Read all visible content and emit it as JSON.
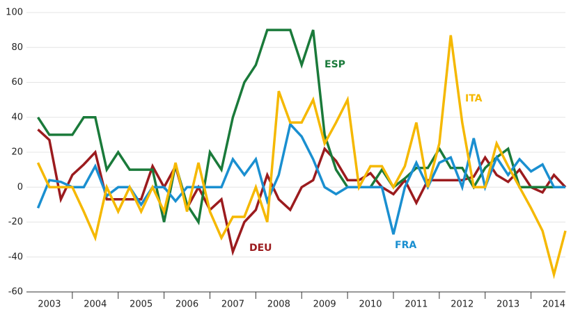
{
  "chart_data": {
    "type": "line",
    "x": [
      2003.25,
      2003.5,
      2003.75,
      2004,
      2004.25,
      2004.5,
      2004.75,
      2005,
      2005.25,
      2005.5,
      2005.75,
      2006,
      2006.25,
      2006.5,
      2006.75,
      2007,
      2007.25,
      2007.5,
      2007.75,
      2008,
      2008.25,
      2008.5,
      2008.75,
      2009,
      2009.25,
      2009.5,
      2009.75,
      2010,
      2010.25,
      2010.5,
      2010.75,
      2011,
      2011.25,
      2011.5,
      2011.75,
      2012,
      2012.25,
      2012.5,
      2012.75,
      2013,
      2013.25,
      2013.5,
      2013.75,
      2014,
      2014.25,
      2014.5,
      2014.75
    ],
    "series": [
      {
        "name": "DEU",
        "color": "#9b1b1e",
        "values": [
          33,
          27,
          -7,
          7,
          13,
          20,
          -7,
          -7,
          -7,
          -7,
          12,
          0,
          12,
          -12,
          0,
          -13,
          -7,
          -37,
          -20,
          -13,
          7,
          -7,
          -13,
          0,
          4,
          22,
          15,
          4,
          4,
          8,
          0,
          -4,
          4,
          -9,
          4,
          4,
          4,
          4,
          6,
          17,
          7,
          3,
          10,
          0,
          -3,
          7,
          0
        ]
      },
      {
        "name": "ESP",
        "color": "#1a7a3a",
        "values": [
          40,
          30,
          30,
          30,
          40,
          40,
          10,
          20,
          10,
          10,
          10,
          -20,
          13,
          -10,
          -20,
          20,
          10,
          40,
          60,
          70,
          90,
          90,
          90,
          70,
          90,
          30,
          10,
          0,
          0,
          0,
          10,
          0,
          5,
          11,
          11,
          22,
          11,
          11,
          0,
          11,
          17,
          22,
          0,
          0,
          0,
          0,
          0
        ]
      },
      {
        "name": "FRA",
        "color": "#1a8fd0",
        "values": [
          -12,
          4,
          3,
          0,
          0,
          12,
          -5,
          0,
          0,
          -10,
          0,
          0,
          -8,
          0,
          0,
          0,
          0,
          16,
          7,
          16,
          -8,
          7,
          36,
          29,
          16,
          0,
          -4,
          0,
          0,
          0,
          0,
          -27,
          0,
          14,
          0,
          14,
          17,
          0,
          28,
          0,
          17,
          7,
          16,
          9,
          13,
          0,
          0
        ]
      },
      {
        "name": "ITA",
        "color": "#f5b800",
        "values": [
          14,
          0,
          0,
          0,
          -14,
          -29,
          0,
          -14,
          0,
          -14,
          0,
          -14,
          14,
          -14,
          14,
          -14,
          -29,
          -17,
          -17,
          0,
          -20,
          55,
          37,
          37,
          50,
          25,
          37,
          50,
          0,
          12,
          12,
          0,
          12,
          37,
          0,
          25,
          87,
          37,
          0,
          0,
          25,
          12,
          0,
          -12,
          -25,
          -50,
          -25
        ]
      }
    ],
    "xlim": [
      2003,
      2014.75
    ],
    "xticks": [
      {
        "value": 2003.5,
        "label": "2003"
      },
      {
        "value": 2004.5,
        "label": "2004"
      },
      {
        "value": 2005.5,
        "label": "2005"
      },
      {
        "value": 2006.5,
        "label": "2006"
      },
      {
        "value": 2007.5,
        "label": "2007"
      },
      {
        "value": 2008.5,
        "label": "2008"
      },
      {
        "value": 2009.5,
        "label": "2009"
      },
      {
        "value": 2010.5,
        "label": "2010"
      },
      {
        "value": 2011.5,
        "label": "2011"
      },
      {
        "value": 2012.5,
        "label": "2012"
      },
      {
        "value": 2013.5,
        "label": "2013"
      },
      {
        "value": 2014.5,
        "label": "2014"
      }
    ],
    "ylim": [
      -60,
      100
    ],
    "yticks": [
      -60,
      -40,
      -20,
      0,
      20,
      40,
      60,
      80,
      100
    ],
    "grid": true
  }
}
